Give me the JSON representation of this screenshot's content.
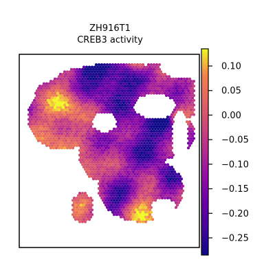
{
  "chart_data": {
    "type": "heatmap",
    "title_line1": "ZH916T1",
    "title_line2": "CREB3 activity",
    "xlabel": "",
    "ylabel": "",
    "colorbar": {
      "vmin": -0.285,
      "vmax": 0.135,
      "colormap": "plasma",
      "ticks": [
        0.1,
        0.05,
        0.0,
        -0.05,
        -0.1,
        -0.15,
        -0.2,
        -0.25
      ],
      "tick_labels": [
        "0.10",
        "0.05",
        "0.00",
        "−0.05",
        "−0.10",
        "−0.15",
        "−0.20",
        "−0.25"
      ]
    },
    "grid": false,
    "legend": "colorbar-right"
  }
}
